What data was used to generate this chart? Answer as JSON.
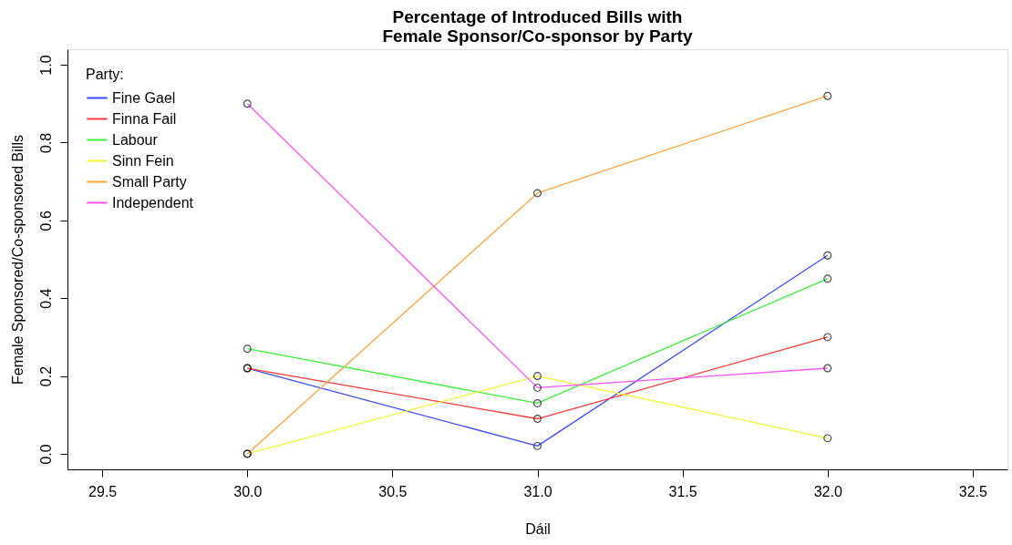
{
  "chart_data": {
    "type": "line",
    "title": "Percentage of Introduced Bills with\nFemale Sponsor/Co-sponsor by Party",
    "xlabel": "Dáil",
    "ylabel": "Female Sponsored/Co-sponsored Bills",
    "legend_title": "Party:",
    "x": [
      30,
      31,
      32
    ],
    "xlim": [
      29.38,
      32.62
    ],
    "xticks": [
      29.5,
      {
        "value": 30,
        "label": "30.0"
      },
      30.5,
      {
        "value": 31,
        "label": "31.0"
      },
      31.5,
      {
        "value": 32,
        "label": "32.0"
      },
      32.5
    ],
    "ylim": [
      -0.04,
      1.04
    ],
    "yticks": [
      {
        "value": 0,
        "label": "0.0"
      },
      0.2,
      0.4,
      0.6,
      0.8,
      {
        "value": 1,
        "label": "1.0"
      }
    ],
    "series": [
      {
        "name": "Fine Gael",
        "color": "#3a4cff",
        "values": [
          0.22,
          0.02,
          0.51
        ]
      },
      {
        "name": "Finna Fail",
        "color": "#ff3a3a",
        "values": [
          0.22,
          0.09,
          0.3
        ]
      },
      {
        "name": "Labour",
        "color": "#3cf03c",
        "values": [
          0.27,
          0.13,
          0.45
        ]
      },
      {
        "name": "Sinn Fein",
        "color": "#f5f53a",
        "values": [
          0.0,
          0.2,
          0.04
        ]
      },
      {
        "name": "Small Party",
        "color": "#ffa53a",
        "values": [
          0.0,
          0.67,
          0.92
        ]
      },
      {
        "name": "Independent",
        "color": "#ff55ff",
        "values": [
          0.9,
          0.17,
          0.22
        ]
      }
    ],
    "marker": "circle",
    "line_style": "solid",
    "legend": "top left",
    "grid": false
  }
}
